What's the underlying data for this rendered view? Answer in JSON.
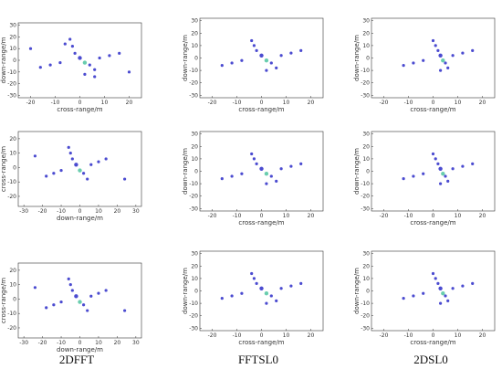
{
  "chart_data": [
    {
      "type": "scatter",
      "row": 0,
      "col": 0,
      "xlabel": "cross-range/m",
      "ylabel": "down-range/m",
      "xlim": [
        -25,
        25
      ],
      "ylim": [
        -32,
        32
      ],
      "xticks": [
        -20,
        -10,
        0,
        10,
        20
      ],
      "yticks": [
        30,
        20,
        10,
        0,
        -10,
        -20,
        -30
      ],
      "x": [
        -4,
        -3,
        -2,
        0,
        2,
        4,
        6,
        -8,
        -12,
        -16,
        8,
        12,
        16,
        -20,
        20,
        2,
        -6,
        6
      ],
      "y": [
        18,
        12,
        6,
        2,
        -2,
        -4,
        -8,
        -2,
        -4,
        -6,
        2,
        4,
        6,
        10,
        -10,
        -12,
        14,
        -14
      ],
      "grid": false
    },
    {
      "type": "scatter",
      "row": 0,
      "col": 1,
      "xlabel": "cross-range/m",
      "ylabel": "down-range/m",
      "xlim": [
        -25,
        25
      ],
      "ylim": [
        -32,
        32
      ],
      "xticks": [
        -20,
        -10,
        0,
        10,
        20
      ],
      "yticks": [
        30,
        20,
        10,
        0,
        -10,
        -20,
        -30
      ],
      "x": [
        -4,
        -3,
        -2,
        0,
        2,
        4,
        6,
        -8,
        -12,
        -16,
        8,
        12,
        16,
        2
      ],
      "y": [
        14,
        10,
        6,
        2,
        -2,
        -4,
        -8,
        -2,
        -4,
        -6,
        2,
        4,
        6,
        -10
      ],
      "grid": false
    },
    {
      "type": "scatter",
      "row": 0,
      "col": 2,
      "xlabel": "cross-range/m",
      "ylabel": "down-range/m",
      "xlim": [
        -25,
        25
      ],
      "ylim": [
        -32,
        32
      ],
      "xticks": [
        -20,
        -10,
        0,
        10,
        20
      ],
      "yticks": [
        30,
        20,
        10,
        0,
        -10,
        -20,
        -30
      ],
      "x": [
        0,
        1,
        2,
        3,
        4,
        5,
        6,
        -4,
        -8,
        -12,
        8,
        12,
        16,
        3
      ],
      "y": [
        14,
        10,
        6,
        2,
        -2,
        -4,
        -8,
        -2,
        -4,
        -6,
        2,
        4,
        6,
        -10
      ],
      "grid": false
    },
    {
      "type": "scatter",
      "row": 1,
      "col": 0,
      "xlabel": "down-range/m",
      "ylabel": "cross-range/m",
      "xlim": [
        -33,
        33
      ],
      "ylim": [
        -27,
        25
      ],
      "xticks": [
        -30,
        -20,
        -10,
        0,
        10,
        20,
        30
      ],
      "yticks": [
        20,
        10,
        0,
        -10,
        -20
      ],
      "x": [
        -6,
        -5,
        -4,
        -2,
        0,
        2,
        4,
        -10,
        -14,
        -18,
        6,
        10,
        14,
        -24,
        24
      ],
      "y": [
        14,
        10,
        6,
        2,
        -2,
        -4,
        -8,
        -2,
        -4,
        -6,
        2,
        4,
        6,
        8,
        -8
      ],
      "grid": false
    },
    {
      "type": "scatter",
      "row": 1,
      "col": 1,
      "xlabel": "cross-range/m",
      "ylabel": "down-range/m",
      "xlim": [
        -25,
        25
      ],
      "ylim": [
        -32,
        32
      ],
      "xticks": [
        -20,
        -10,
        0,
        10,
        20
      ],
      "yticks": [
        30,
        20,
        10,
        0,
        -10,
        -20,
        -30
      ],
      "x": [
        -4,
        -3,
        -2,
        0,
        2,
        4,
        6,
        -8,
        -12,
        -16,
        8,
        12,
        16,
        2
      ],
      "y": [
        14,
        10,
        6,
        2,
        -2,
        -4,
        -8,
        -2,
        -4,
        -6,
        2,
        4,
        6,
        -10
      ],
      "grid": false
    },
    {
      "type": "scatter",
      "row": 1,
      "col": 2,
      "xlabel": "cross-range/m",
      "ylabel": "down-range/m",
      "xlim": [
        -25,
        25
      ],
      "ylim": [
        -32,
        32
      ],
      "xticks": [
        -20,
        -10,
        0,
        10,
        20
      ],
      "yticks": [
        30,
        20,
        10,
        0,
        -10,
        -20,
        -30
      ],
      "x": [
        0,
        1,
        2,
        3,
        4,
        5,
        6,
        -4,
        -8,
        -12,
        8,
        12,
        16,
        3
      ],
      "y": [
        14,
        10,
        6,
        2,
        -2,
        -4,
        -8,
        -2,
        -4,
        -6,
        2,
        4,
        6,
        -10
      ],
      "grid": false
    },
    {
      "type": "scatter",
      "row": 2,
      "col": 0,
      "xlabel": "down-range/m",
      "ylabel": "cross-range/m",
      "xlim": [
        -33,
        33
      ],
      "ylim": [
        -27,
        25
      ],
      "xticks": [
        -30,
        -20,
        -10,
        0,
        10,
        20,
        30
      ],
      "yticks": [
        20,
        10,
        0,
        -10,
        -20
      ],
      "x": [
        -6,
        -5,
        -4,
        -2,
        0,
        2,
        4,
        -10,
        -14,
        -18,
        6,
        10,
        14,
        -24,
        24
      ],
      "y": [
        14,
        10,
        6,
        2,
        -2,
        -4,
        -8,
        -2,
        -4,
        -6,
        2,
        4,
        6,
        8,
        -8
      ],
      "grid": false
    },
    {
      "type": "scatter",
      "row": 2,
      "col": 1,
      "xlabel": "cross-range/m",
      "ylabel": "down-range/m",
      "xlim": [
        -25,
        25
      ],
      "ylim": [
        -32,
        32
      ],
      "xticks": [
        -20,
        -10,
        0,
        10,
        20
      ],
      "yticks": [
        30,
        20,
        10,
        0,
        -10,
        -20,
        -30
      ],
      "x": [
        -4,
        -3,
        -2,
        0,
        2,
        4,
        6,
        -8,
        -12,
        -16,
        8,
        12,
        16,
        2
      ],
      "y": [
        14,
        10,
        6,
        2,
        -2,
        -4,
        -8,
        -2,
        -4,
        -6,
        2,
        4,
        6,
        -10
      ],
      "grid": false
    },
    {
      "type": "scatter",
      "row": 2,
      "col": 2,
      "xlabel": "cross-range/m",
      "ylabel": "down-range/m",
      "xlim": [
        -25,
        25
      ],
      "ylim": [
        -32,
        32
      ],
      "xticks": [
        -20,
        -10,
        0,
        10,
        20
      ],
      "yticks": [
        30,
        20,
        10,
        0,
        -10,
        -20,
        -30
      ],
      "x": [
        0,
        1,
        2,
        3,
        4,
        5,
        6,
        -4,
        -8,
        -12,
        8,
        12,
        16,
        3
      ],
      "y": [
        14,
        10,
        6,
        2,
        -2,
        -4,
        -8,
        -2,
        -4,
        -6,
        2,
        4,
        6,
        -10
      ],
      "grid": false
    }
  ],
  "column_labels": [
    "2DFFT",
    "FFTSL0",
    "2DSL0"
  ],
  "colors": {
    "points": "#2b2bc8",
    "hot": "#4fc4a0",
    "axis": "#333333"
  }
}
